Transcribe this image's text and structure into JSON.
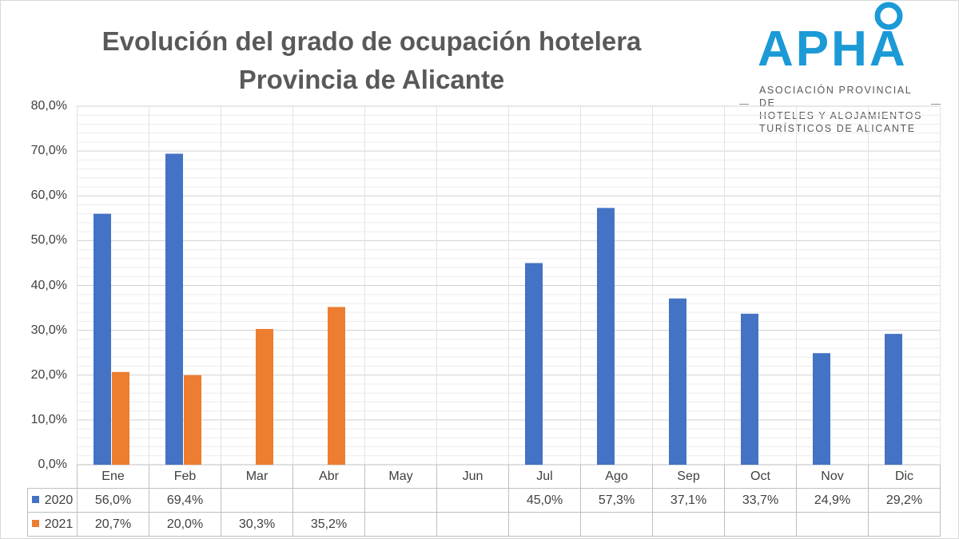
{
  "logo": {
    "text": "APHA",
    "lines": [
      "ASOCIACIÓN PROVINCIAL DE",
      "HOTELES Y ALOJAMIENTOS",
      "TURÍSTICOS DE ALICANTE"
    ],
    "color": "#1b9ad6"
  },
  "chart_data": {
    "type": "bar",
    "title": "Evolución del grado de ocupación hotelera",
    "subtitle": "Provincia de Alicante",
    "categories": [
      "Ene",
      "Feb",
      "Mar",
      "Abr",
      "May",
      "Jun",
      "Jul",
      "Ago",
      "Sep",
      "Oct",
      "Nov",
      "Dic"
    ],
    "series": [
      {
        "name": "2020",
        "color": "#4472c4",
        "values": [
          56.0,
          69.4,
          null,
          null,
          null,
          null,
          45.0,
          57.3,
          37.1,
          33.7,
          24.9,
          29.2
        ],
        "labels": [
          "56,0%",
          "69,4%",
          "",
          "",
          "",
          "",
          "45,0%",
          "57,3%",
          "37,1%",
          "33,7%",
          "24,9%",
          "29,2%"
        ]
      },
      {
        "name": "2021",
        "color": "#ed7d31",
        "values": [
          20.7,
          20.0,
          30.3,
          35.2,
          null,
          null,
          null,
          null,
          null,
          null,
          null,
          null
        ],
        "labels": [
          "20,7%",
          "20,0%",
          "30,3%",
          "35,2%",
          "",
          "",
          "",
          "",
          "",
          "",
          "",
          ""
        ]
      }
    ],
    "ylim": [
      0,
      80
    ],
    "yticks": [
      0,
      10,
      20,
      30,
      40,
      50,
      60,
      70,
      80
    ],
    "ytick_labels": [
      "0,0%",
      "10,0%",
      "20,0%",
      "30,0%",
      "40,0%",
      "50,0%",
      "60,0%",
      "70,0%",
      "80,0%"
    ],
    "grid": true,
    "legend": "data-table"
  }
}
